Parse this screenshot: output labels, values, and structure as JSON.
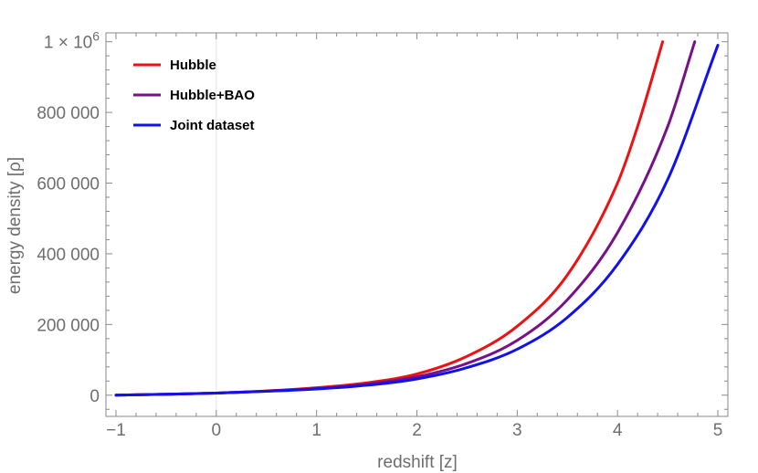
{
  "chart_data": {
    "type": "line",
    "title": "",
    "xlabel": "redshift [z]",
    "ylabel": "energy density [ρ]",
    "xlim": [
      -1.1,
      5.1
    ],
    "ylim": [
      -60000,
      1025000
    ],
    "x_ticks": [
      {
        "value": -1,
        "label": "−1"
      },
      {
        "value": 0,
        "label": "0"
      },
      {
        "value": 1,
        "label": "1"
      },
      {
        "value": 2,
        "label": "2"
      },
      {
        "value": 3,
        "label": "3"
      },
      {
        "value": 4,
        "label": "4"
      },
      {
        "value": 5,
        "label": "5"
      }
    ],
    "y_ticks": [
      {
        "value": 0,
        "label": "0"
      },
      {
        "value": 200000,
        "label": "200 000"
      },
      {
        "value": 400000,
        "label": "400 000"
      },
      {
        "value": 600000,
        "label": "600 000"
      },
      {
        "value": 800000,
        "label": "800 000"
      },
      {
        "value": 1000000,
        "label": "1 × 10",
        "sup": "6"
      }
    ],
    "legend_position": "top-left",
    "grid": false,
    "series": [
      {
        "name": "Hubble",
        "color": "#ee1111",
        "x": [
          -1,
          -0.5,
          0,
          0.5,
          1,
          1.5,
          2,
          2.5,
          3,
          3.5,
          4,
          4.2,
          4.45
        ],
        "y": [
          0,
          2500,
          6000,
          12000,
          21000,
          35000,
          60000,
          110000,
          195000,
          340000,
          600000,
          760000,
          1000000
        ]
      },
      {
        "name": "Hubble+BAO",
        "color": "#771188",
        "x": [
          -1,
          -0.5,
          0,
          0.5,
          1,
          1.5,
          2,
          2.5,
          3,
          3.5,
          4,
          4.5,
          4.77
        ],
        "y": [
          0,
          2500,
          6000,
          11500,
          19000,
          31000,
          52000,
          90000,
          155000,
          270000,
          460000,
          760000,
          1000000
        ]
      },
      {
        "name": "Joint dataset",
        "color": "#1111ee",
        "x": [
          -1,
          -0.5,
          0,
          0.5,
          1,
          1.5,
          2,
          2.5,
          3,
          3.5,
          4,
          4.5,
          5.0
        ],
        "y": [
          0,
          2500,
          6000,
          11000,
          17500,
          28000,
          46000,
          78000,
          130000,
          220000,
          370000,
          610000,
          990000
        ]
      }
    ]
  }
}
